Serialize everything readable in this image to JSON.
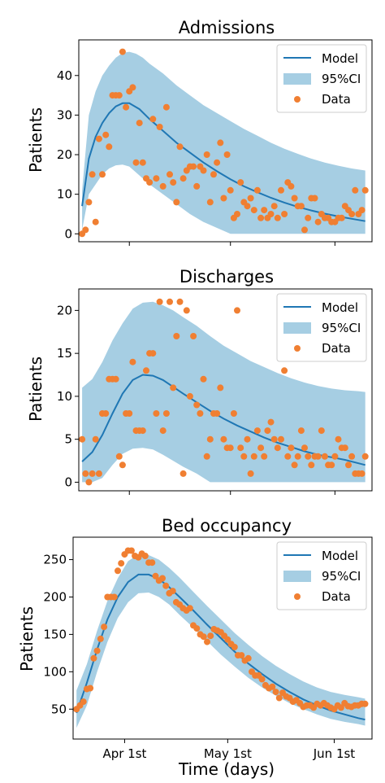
{
  "figure": {
    "xlabel": "Time (days)",
    "xticks": [
      {
        "day": 14,
        "label": "Apr 1st"
      },
      {
        "day": 44,
        "label": "May 1st"
      },
      {
        "day": 75,
        "label": "Jun 1st"
      }
    ]
  },
  "chart_data": [
    {
      "type": "line",
      "title": "Admissions",
      "ylabel": "Patients",
      "xlim": [
        -1,
        86
      ],
      "ylim": [
        -2,
        49
      ],
      "yticks": [
        0,
        10,
        20,
        30,
        40
      ],
      "legend": {
        "position": "top-right",
        "entries": [
          "Model",
          "95%CI",
          "Data"
        ]
      },
      "series": [
        {
          "name": "Model",
          "x": [
            0,
            2,
            4,
            6,
            8,
            10,
            12,
            14,
            17,
            20,
            24,
            28,
            32,
            36,
            40,
            44,
            48,
            52,
            56,
            60,
            64,
            68,
            72,
            76,
            80,
            84
          ],
          "y": [
            7,
            19,
            24.5,
            28,
            30.5,
            32.2,
            33,
            33,
            31.5,
            29,
            26,
            23,
            20.5,
            18,
            15.8,
            13.8,
            12,
            10.5,
            9.1,
            7.9,
            6.8,
            5.9,
            5.1,
            4.4,
            3.8,
            3.2
          ]
        },
        {
          "name": "95%CI",
          "x": [
            0,
            2,
            4,
            6,
            8,
            10,
            12,
            14,
            16,
            18,
            20,
            24,
            28,
            32,
            36,
            40,
            44,
            48,
            52,
            56,
            60,
            64,
            68,
            72,
            76,
            80,
            84
          ],
          "upper": [
            11,
            30,
            36,
            40,
            42.5,
            44.5,
            45.7,
            46,
            45.5,
            44.5,
            43,
            40.5,
            37.5,
            35,
            32.5,
            30.5,
            28.5,
            26.5,
            24.8,
            23,
            21.5,
            20.2,
            19,
            18,
            17.2,
            16.5,
            16
          ],
          "lower": [
            1,
            10,
            12.5,
            15,
            16.5,
            17.3,
            17.5,
            17,
            15.5,
            14,
            12.5,
            10,
            7.5,
            5,
            3,
            1.5,
            0,
            0,
            0,
            0,
            0,
            0,
            0,
            0,
            0,
            0,
            0
          ]
        },
        {
          "name": "Data",
          "x": [
            0,
            1,
            2,
            3,
            4,
            5,
            6,
            7,
            8,
            9,
            10,
            11,
            12,
            13,
            14,
            15,
            16,
            17,
            18,
            19,
            20,
            21,
            22,
            23,
            24,
            25,
            26,
            27,
            28,
            29,
            30,
            31,
            32,
            33,
            34,
            35,
            36,
            37,
            38,
            39,
            40,
            41,
            42,
            43,
            44,
            45,
            46,
            47,
            48,
            49,
            50,
            51,
            52,
            53,
            54,
            55,
            56,
            57,
            58,
            59,
            60,
            61,
            62,
            63,
            64,
            65,
            66,
            67,
            68,
            69,
            70,
            71,
            72,
            73,
            74,
            75,
            76,
            77,
            78,
            79,
            80,
            81,
            82,
            83,
            84
          ],
          "y": [
            0,
            1,
            8,
            15,
            3,
            24,
            15,
            25,
            22,
            35,
            35,
            35,
            46,
            32,
            36,
            37,
            18,
            28,
            18,
            14,
            13,
            29,
            14,
            27,
            12,
            32,
            15,
            13,
            8,
            22,
            14,
            16,
            17,
            17,
            12,
            17,
            16,
            20,
            8,
            15,
            18,
            23,
            9,
            20,
            11,
            4,
            5,
            13,
            8,
            7,
            9,
            6,
            11,
            4,
            6,
            4,
            5,
            7,
            4,
            11,
            5,
            13,
            12,
            9,
            7,
            7,
            1,
            4,
            9,
            9,
            3,
            5,
            4,
            4,
            3,
            3,
            4,
            4,
            7,
            6,
            5,
            11,
            5,
            6,
            11
          ]
        }
      ]
    },
    {
      "type": "line",
      "title": "Discharges",
      "ylabel": "Patients",
      "xlim": [
        -1,
        86
      ],
      "ylim": [
        -1,
        22.5
      ],
      "yticks": [
        0,
        5,
        10,
        15,
        20
      ],
      "legend": {
        "position": "top-right",
        "entries": [
          "Model",
          "95%CI",
          "Data"
        ]
      },
      "series": [
        {
          "name": "Model",
          "x": [
            0,
            3,
            6,
            9,
            12,
            15,
            18,
            21,
            24,
            27,
            30,
            34,
            38,
            42,
            46,
            50,
            54,
            58,
            62,
            66,
            70,
            74,
            78,
            82,
            84
          ],
          "y": [
            2.4,
            3.5,
            5.5,
            8,
            10.3,
            11.9,
            12.5,
            12.4,
            11.9,
            11.1,
            10.3,
            9.3,
            8.3,
            7.4,
            6.6,
            5.9,
            5.2,
            4.6,
            4.1,
            3.6,
            3.2,
            2.9,
            2.6,
            2.2,
            2
          ]
        },
        {
          "name": "95%CI",
          "x": [
            0,
            3,
            6,
            9,
            12,
            15,
            18,
            21,
            24,
            27,
            30,
            34,
            38,
            42,
            46,
            50,
            54,
            58,
            62,
            66,
            70,
            74,
            78,
            82,
            84
          ],
          "upper": [
            11,
            12,
            14,
            16.5,
            18.5,
            20.2,
            20.9,
            21,
            20.6,
            20,
            19.2,
            18.2,
            17,
            15.9,
            15,
            14.1,
            13.4,
            12.7,
            12.1,
            11.6,
            11.2,
            10.9,
            10.7,
            10.6,
            10.5
          ],
          "lower": [
            0,
            0,
            0.5,
            2,
            3.3,
            3.9,
            4,
            3.8,
            3.2,
            2.5,
            1.8,
            1,
            0,
            0,
            0,
            0,
            0,
            0,
            0,
            0,
            0,
            0,
            0,
            0,
            0
          ]
        },
        {
          "name": "Data",
          "x": [
            0,
            1,
            2,
            3,
            4,
            5,
            6,
            7,
            8,
            9,
            10,
            11,
            12,
            13,
            14,
            15,
            16,
            17,
            18,
            19,
            20,
            21,
            22,
            23,
            24,
            25,
            26,
            27,
            28,
            29,
            30,
            31,
            32,
            33,
            34,
            35,
            36,
            37,
            38,
            39,
            40,
            41,
            42,
            43,
            44,
            45,
            46,
            47,
            48,
            49,
            50,
            51,
            52,
            53,
            54,
            55,
            56,
            57,
            58,
            59,
            60,
            61,
            62,
            63,
            64,
            65,
            66,
            67,
            68,
            69,
            70,
            71,
            72,
            73,
            74,
            75,
            76,
            77,
            78,
            79,
            80,
            81,
            82,
            83,
            84
          ],
          "y": [
            5,
            1,
            0,
            1,
            5,
            1,
            8,
            8,
            12,
            12,
            12,
            3,
            2,
            8,
            8,
            14,
            6,
            6,
            6,
            13,
            15,
            15,
            8,
            21,
            6,
            8,
            21,
            11,
            17,
            21,
            1,
            20,
            10,
            17,
            9,
            8,
            12,
            3,
            5,
            8,
            8,
            11,
            5,
            4,
            4,
            8,
            20,
            4,
            3,
            5,
            1,
            3,
            6,
            4,
            3,
            6,
            7,
            5,
            4,
            5,
            13,
            3,
            4,
            2,
            3,
            6,
            4,
            3,
            2,
            3,
            3,
            6,
            3,
            2,
            2,
            3,
            5,
            4,
            4,
            2,
            3,
            1,
            1,
            1,
            3
          ]
        }
      ]
    },
    {
      "type": "line",
      "title": "Bed occupancy",
      "ylabel": "Patients",
      "xlim": [
        -1,
        86
      ],
      "ylim": [
        10,
        280
      ],
      "yticks": [
        50,
        100,
        150,
        200,
        250
      ],
      "legend": {
        "position": "top-right",
        "entries": [
          "Model",
          "95%CI",
          "Data"
        ]
      },
      "series": [
        {
          "name": "Model",
          "x": [
            0,
            3,
            6,
            9,
            12,
            15,
            18,
            21,
            24,
            27,
            30,
            34,
            38,
            42,
            46,
            50,
            54,
            58,
            62,
            66,
            70,
            74,
            78,
            82,
            84
          ],
          "y": [
            45,
            85,
            130,
            170,
            200,
            220,
            230,
            230,
            224,
            213,
            200,
            182,
            163,
            145,
            127,
            111,
            97,
            84,
            73,
            63,
            55,
            48,
            43,
            38,
            36
          ]
        },
        {
          "name": "95%CI",
          "x": [
            0,
            3,
            6,
            9,
            12,
            15,
            18,
            21,
            24,
            27,
            30,
            34,
            38,
            42,
            46,
            50,
            54,
            58,
            62,
            66,
            70,
            74,
            78,
            82,
            84
          ],
          "upper": [
            75,
            110,
            155,
            195,
            225,
            248,
            257,
            256,
            250,
            239,
            226,
            207,
            188,
            170,
            152,
            136,
            121,
            108,
            97,
            87,
            79,
            73,
            69,
            66,
            64
          ],
          "lower": [
            25,
            55,
            100,
            140,
            172,
            193,
            205,
            206,
            200,
            190,
            176,
            159,
            141,
            123,
            107,
            92,
            79,
            68,
            58,
            50,
            43,
            37,
            33,
            30,
            28
          ]
        },
        {
          "name": "Data",
          "x": [
            0,
            1,
            2,
            3,
            4,
            5,
            6,
            7,
            8,
            9,
            10,
            11,
            12,
            13,
            14,
            15,
            16,
            17,
            18,
            19,
            20,
            21,
            22,
            23,
            24,
            25,
            26,
            27,
            28,
            29,
            30,
            31,
            32,
            33,
            34,
            35,
            36,
            37,
            38,
            39,
            40,
            41,
            42,
            43,
            44,
            45,
            46,
            47,
            48,
            49,
            50,
            51,
            52,
            53,
            54,
            55,
            56,
            57,
            58,
            59,
            60,
            61,
            62,
            63,
            64,
            65,
            66,
            67,
            68,
            69,
            70,
            71,
            72,
            73,
            74,
            75,
            76,
            77,
            78,
            79,
            80,
            81,
            82,
            83,
            84
          ],
          "y": [
            50,
            55,
            60,
            77,
            78,
            118,
            128,
            144,
            160,
            200,
            200,
            200,
            235,
            245,
            257,
            262,
            262,
            255,
            253,
            258,
            255,
            246,
            246,
            228,
            222,
            225,
            215,
            205,
            208,
            193,
            190,
            185,
            182,
            185,
            162,
            158,
            150,
            147,
            140,
            148,
            157,
            155,
            153,
            148,
            143,
            137,
            133,
            122,
            122,
            115,
            118,
            100,
            95,
            95,
            90,
            82,
            78,
            80,
            73,
            65,
            72,
            67,
            65,
            60,
            62,
            58,
            53,
            55,
            55,
            52,
            57,
            55,
            58,
            55,
            52,
            50,
            55,
            52,
            58,
            54,
            53,
            55,
            55,
            57,
            57
          ]
        }
      ]
    }
  ]
}
